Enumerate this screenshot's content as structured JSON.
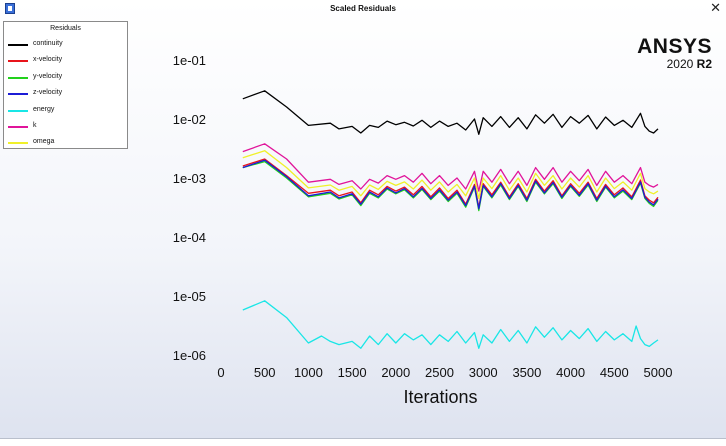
{
  "window": {
    "title": "Scaled Residuals",
    "close_symbol": "✕"
  },
  "brand": {
    "name": "ANSYS",
    "version": "2020",
    "release": "R2"
  },
  "legend": {
    "title": "Residuals"
  },
  "chart_data": {
    "type": "line",
    "xlabel": "Iterations",
    "ylabel": "",
    "x_ticks": [
      "0",
      "500",
      "1000",
      "1500",
      "2000",
      "2500",
      "3000",
      "3500",
      "4000",
      "4500",
      "5000"
    ],
    "y_ticks": [
      "1e-06",
      "1e-05",
      "1e-04",
      "1e-03",
      "1e-02",
      "1e-01"
    ],
    "xlim": [
      0,
      5000
    ],
    "ylim": [
      1e-06,
      0.1
    ],
    "y_scale": "log",
    "grid": false,
    "legend_position": "top-left",
    "series": [
      {
        "name": "continuity",
        "color": "#000000",
        "x": [
          250,
          500,
          750,
          1000,
          1250,
          1350,
          1500,
          1600,
          1700,
          1800,
          1900,
          2000,
          2100,
          2200,
          2300,
          2400,
          2500,
          2600,
          2700,
          2800,
          2900,
          2950,
          3000,
          3100,
          3200,
          3300,
          3400,
          3500,
          3600,
          3700,
          3800,
          3900,
          4000,
          4100,
          4200,
          4300,
          4400,
          4500,
          4600,
          4700,
          4800,
          4850,
          4900,
          4950,
          5000
        ],
        "y": [
          0.022,
          0.03,
          0.016,
          0.0078,
          0.0085,
          0.0068,
          0.0075,
          0.0058,
          0.0078,
          0.0072,
          0.0092,
          0.008,
          0.0088,
          0.0076,
          0.0095,
          0.0072,
          0.0092,
          0.0075,
          0.0085,
          0.0065,
          0.01,
          0.0055,
          0.0105,
          0.0075,
          0.011,
          0.0072,
          0.0105,
          0.0068,
          0.0118,
          0.0085,
          0.012,
          0.0072,
          0.011,
          0.0085,
          0.0115,
          0.0068,
          0.0108,
          0.0078,
          0.0095,
          0.0072,
          0.0125,
          0.0075,
          0.0062,
          0.0058,
          0.0068
        ]
      },
      {
        "name": "x-velocity",
        "color": "#e8141b",
        "x": [
          250,
          500,
          750,
          1000,
          1250,
          1350,
          1500,
          1600,
          1700,
          1800,
          1900,
          2000,
          2100,
          2200,
          2300,
          2400,
          2500,
          2600,
          2700,
          2800,
          2900,
          2950,
          3000,
          3100,
          3200,
          3300,
          3400,
          3500,
          3600,
          3700,
          3800,
          3900,
          4000,
          4100,
          4200,
          4300,
          4400,
          4500,
          4600,
          4700,
          4800,
          4850,
          4900,
          4950,
          5000
        ],
        "y": [
          0.0016,
          0.0021,
          0.0011,
          0.00055,
          0.00062,
          0.0005,
          0.00058,
          0.00038,
          0.00062,
          0.00052,
          0.00072,
          0.0006,
          0.0007,
          0.00052,
          0.00072,
          0.00048,
          0.00068,
          0.00045,
          0.00062,
          0.00036,
          0.00078,
          0.00032,
          0.0008,
          0.00052,
          0.00085,
          0.00048,
          0.0008,
          0.00045,
          0.00095,
          0.0006,
          0.0009,
          0.0005,
          0.0008,
          0.00055,
          0.00085,
          0.00045,
          0.00078,
          0.00052,
          0.00068,
          0.00048,
          0.00092,
          0.0005,
          0.00042,
          0.00038,
          0.00047
        ]
      },
      {
        "name": "y-velocity",
        "color": "#22d11c",
        "x": [
          250,
          500,
          750,
          1000,
          1250,
          1350,
          1500,
          1600,
          1700,
          1800,
          1900,
          2000,
          2100,
          2200,
          2300,
          2400,
          2500,
          2600,
          2700,
          2800,
          2900,
          2950,
          3000,
          3100,
          3200,
          3300,
          3400,
          3500,
          3600,
          3700,
          3800,
          3900,
          4000,
          4100,
          4200,
          4300,
          4400,
          4500,
          4600,
          4700,
          4800,
          4850,
          4900,
          4950,
          5000
        ],
        "y": [
          0.0015,
          0.0019,
          0.001,
          0.00048,
          0.00055,
          0.00044,
          0.00052,
          0.00034,
          0.00055,
          0.00046,
          0.00065,
          0.00054,
          0.00063,
          0.00046,
          0.00064,
          0.00043,
          0.0006,
          0.0004,
          0.00055,
          0.00032,
          0.0007,
          0.00028,
          0.00072,
          0.00046,
          0.00076,
          0.00043,
          0.00072,
          0.0004,
          0.00085,
          0.00054,
          0.0008,
          0.00045,
          0.00072,
          0.00049,
          0.00076,
          0.0004,
          0.0007,
          0.00046,
          0.0006,
          0.00043,
          0.00082,
          0.00045,
          0.00037,
          0.00033,
          0.00042
        ]
      },
      {
        "name": "z-velocity",
        "color": "#1c1cd6",
        "x": [
          250,
          500,
          750,
          1000,
          1250,
          1350,
          1500,
          1600,
          1700,
          1800,
          1900,
          2000,
          2100,
          2200,
          2300,
          2400,
          2500,
          2600,
          2700,
          2800,
          2900,
          2950,
          3000,
          3100,
          3200,
          3300,
          3400,
          3500,
          3600,
          3700,
          3800,
          3900,
          4000,
          4100,
          4200,
          4300,
          4400,
          4500,
          4600,
          4700,
          4800,
          4850,
          4900,
          4950,
          5000
        ],
        "y": [
          0.0015,
          0.002,
          0.00105,
          0.0005,
          0.00058,
          0.00046,
          0.00054,
          0.00036,
          0.00058,
          0.00048,
          0.00068,
          0.00056,
          0.00066,
          0.00048,
          0.00067,
          0.00045,
          0.00063,
          0.00042,
          0.00058,
          0.00034,
          0.00073,
          0.0003,
          0.00075,
          0.00048,
          0.0008,
          0.00045,
          0.00075,
          0.00042,
          0.00089,
          0.00056,
          0.00084,
          0.00047,
          0.00075,
          0.00051,
          0.0008,
          0.00042,
          0.00073,
          0.00048,
          0.00063,
          0.00045,
          0.00086,
          0.00047,
          0.00039,
          0.00035,
          0.00044
        ]
      },
      {
        "name": "energy",
        "color": "#19e6e6",
        "x": [
          250,
          500,
          750,
          1000,
          1150,
          1250,
          1350,
          1500,
          1600,
          1700,
          1800,
          1900,
          2000,
          2100,
          2200,
          2300,
          2400,
          2500,
          2600,
          2700,
          2800,
          2900,
          2950,
          3000,
          3100,
          3200,
          3300,
          3400,
          3500,
          3600,
          3700,
          3800,
          3900,
          4000,
          4100,
          4200,
          4300,
          4400,
          4500,
          4600,
          4700,
          4750,
          4800,
          4850,
          4900,
          4950,
          5000
        ],
        "y": [
          5.8e-06,
          8.3e-06,
          4.3e-06,
          1.6e-06,
          2.1e-06,
          1.7e-06,
          1.5e-06,
          1.7e-06,
          1.3e-06,
          2.1e-06,
          1.5e-06,
          2.3e-06,
          1.6e-06,
          2.3e-06,
          1.8e-06,
          2.2e-06,
          1.5e-06,
          2.2e-06,
          1.7e-06,
          2.5e-06,
          1.6e-06,
          2.4e-06,
          1.3e-06,
          2.2e-06,
          1.6e-06,
          2.7e-06,
          1.7e-06,
          2.6e-06,
          1.6e-06,
          3e-06,
          2e-06,
          2.9e-06,
          1.8e-06,
          2.6e-06,
          1.9e-06,
          2.8e-06,
          1.7e-06,
          2.5e-06,
          1.8e-06,
          2.3e-06,
          1.7e-06,
          3.1e-06,
          1.9e-06,
          1.5e-06,
          1.4e-06,
          1.6e-06,
          1.8e-06
        ]
      },
      {
        "name": "k",
        "color": "#e0149a",
        "x": [
          250,
          500,
          750,
          1000,
          1250,
          1350,
          1500,
          1600,
          1700,
          1800,
          1900,
          2000,
          2100,
          2200,
          2300,
          2400,
          2500,
          2600,
          2700,
          2800,
          2900,
          2950,
          3000,
          3100,
          3200,
          3300,
          3400,
          3500,
          3600,
          3700,
          3800,
          3900,
          4000,
          4100,
          4200,
          4300,
          4400,
          4500,
          4600,
          4700,
          4800,
          4850,
          4900,
          4950,
          5000
        ],
        "y": [
          0.0028,
          0.0038,
          0.0021,
          0.00085,
          0.00095,
          0.00078,
          0.0009,
          0.00065,
          0.00095,
          0.00082,
          0.0011,
          0.00095,
          0.0011,
          0.00085,
          0.0012,
          0.0008,
          0.0011,
          0.00075,
          0.001,
          0.00065,
          0.0013,
          0.0006,
          0.0013,
          0.00085,
          0.0014,
          0.0008,
          0.0013,
          0.00075,
          0.0015,
          0.00095,
          0.0015,
          0.00085,
          0.0013,
          0.0009,
          0.0014,
          0.00075,
          0.0013,
          0.00085,
          0.0011,
          0.0008,
          0.0015,
          0.00085,
          0.00075,
          0.0007,
          0.00078
        ]
      },
      {
        "name": "omega",
        "color": "#f0f02a",
        "x": [
          250,
          500,
          750,
          1000,
          1250,
          1350,
          1500,
          1600,
          1700,
          1800,
          1900,
          2000,
          2100,
          2200,
          2300,
          2400,
          2500,
          2600,
          2700,
          2800,
          2900,
          2950,
          3000,
          3100,
          3200,
          3300,
          3400,
          3500,
          3600,
          3700,
          3800,
          3900,
          4000,
          4100,
          4200,
          4300,
          4400,
          4500,
          4600,
          4700,
          4800,
          4850,
          4900,
          4950,
          5000
        ],
        "y": [
          0.0022,
          0.0029,
          0.0015,
          0.00068,
          0.00076,
          0.00062,
          0.00072,
          0.0005,
          0.00076,
          0.00064,
          0.00088,
          0.00075,
          0.00086,
          0.00065,
          0.00092,
          0.00062,
          0.00086,
          0.00058,
          0.00078,
          0.0005,
          0.001,
          0.00045,
          0.001,
          0.00066,
          0.0011,
          0.00062,
          0.001,
          0.00058,
          0.0012,
          0.00075,
          0.0011,
          0.00065,
          0.001,
          0.0007,
          0.0011,
          0.00058,
          0.001,
          0.00066,
          0.00086,
          0.00062,
          0.0012,
          0.00066,
          0.00058,
          0.00054,
          0.0006
        ]
      }
    ]
  }
}
